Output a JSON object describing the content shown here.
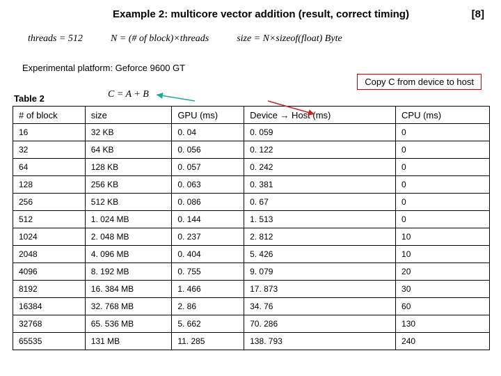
{
  "title": "Example 2: multicore vector addition (result, correct timing)",
  "slide_number": "[8]",
  "formulas": {
    "threads": "threads = 512",
    "n": "N = (# of block)×threads",
    "size": "size = N×sizeof(float) Byte",
    "cab": "C = A + B"
  },
  "platform": "Experimental platform: Geforce 9600 GT",
  "callout": "Copy C from device to host",
  "table_label": "Table 2",
  "columns": [
    "# of block",
    "size",
    "GPU (ms)",
    "Device → Host  (ms)",
    "CPU (ms)"
  ],
  "rows": [
    [
      "16",
      "32 KB",
      "0. 04",
      "0. 059",
      "0"
    ],
    [
      "32",
      "64 KB",
      "0. 056",
      "0. 122",
      "0"
    ],
    [
      "64",
      "128 KB",
      "0. 057",
      "0. 242",
      "0"
    ],
    [
      "128",
      "256 KB",
      "0. 063",
      "0. 381",
      "0"
    ],
    [
      "256",
      "512 KB",
      "0. 086",
      "0. 67",
      "0"
    ],
    [
      "512",
      "1. 024 MB",
      "0. 144",
      "1. 513",
      "0"
    ],
    [
      "1024",
      "2. 048 MB",
      "0. 237",
      "2. 812",
      "10"
    ],
    [
      "2048",
      "4. 096 MB",
      "0. 404",
      "5. 426",
      "10"
    ],
    [
      "4096",
      "8. 192 MB",
      "0. 755",
      "9. 079",
      "20"
    ],
    [
      "8192",
      "16. 384 MB",
      "1. 466",
      "17. 873",
      "30"
    ],
    [
      "16384",
      "32. 768 MB",
      "2. 86",
      "34. 76",
      "60"
    ],
    [
      "32768",
      "65. 536 MB",
      "5. 662",
      "70. 286",
      "130"
    ],
    [
      "65535",
      "131   MB",
      "11. 285",
      "138. 793",
      "240"
    ]
  ],
  "col_widths": [
    "100px",
    "120px",
    "100px",
    "210px",
    "130px"
  ],
  "colors": {
    "callout_border": "#cc0000",
    "arrow_teal": "#1aa9a0",
    "arrow_red": "#cc2222"
  }
}
